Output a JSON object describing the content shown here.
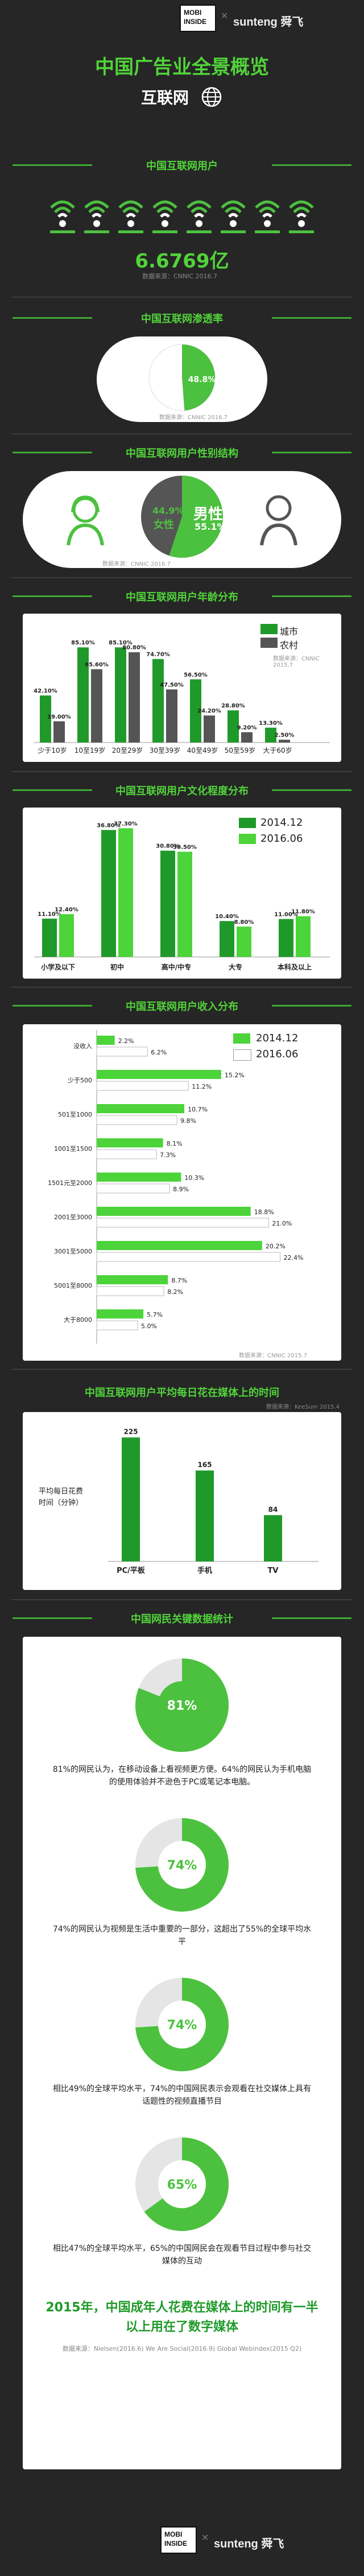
{
  "header": {
    "brand_left": "MOBI INSIDE",
    "brand_right": "sunteng 舜飞",
    "title": "中国广告业全景概览",
    "subtitle": "互联网"
  },
  "colors": {
    "background": "#262626",
    "accent": "#4cc13f",
    "dark_green": "#1f7a1f",
    "light_green": "#7de06a",
    "gray": "#9a9a9a"
  },
  "users": {
    "title": "中国互联网用户",
    "value": "6.6769亿",
    "source": "数据来源：CNNIC 2016.7",
    "icon": "wifi-icon"
  },
  "penetration": {
    "title": "中国互联网渗透率",
    "value": "48.8%",
    "percent": 48.8,
    "source": "数据来源：CNNIC 2016.7"
  },
  "gender": {
    "title": "中国互联网用户性别结构",
    "female_pct": "44.9%",
    "female_label": "女性",
    "male_label": "男性",
    "male_pct": "55.1%",
    "female_value": 44.9,
    "male_value": 55.1,
    "source": "数据来源：CNNIC 2016.7"
  },
  "age": {
    "title": "中国互联网用户年龄分布",
    "legend_city": "城市",
    "legend_rural": "农村",
    "source": "数据来源：CNNIC 2015.7"
  },
  "education": {
    "title": "中国互联网用户文化程度分布",
    "legend_a": "2014.12",
    "legend_b": "2016.06"
  },
  "income": {
    "title": "中国互联网用户收入分布",
    "legend_a": "2014.12",
    "legend_b": "2016.06",
    "source": "数据来源：CNNIC 2015.7"
  },
  "media_time": {
    "title": "中国互联网用户平均每日花在媒体上的时间",
    "source": "数据来源：KeeSum 2015.4",
    "ylabel": "平均每日花费时间（分钟）"
  },
  "stats": {
    "title": "中国网民关键数据统计",
    "items": [
      {
        "value": "81%",
        "percent": 81,
        "text": "81%的网民认为，在移动设备上看视频更方便。64%的网民认为手机电脑的使用体验并不逊色于PC或笔记本电脑。"
      },
      {
        "value": "74%",
        "percent": 74,
        "text": "74%的网民认为视频是生活中重要的一部分，这超出了55%的全球平均水平"
      },
      {
        "value": "74%",
        "percent": 74,
        "text": "相比49%的全球平均水平，74%的中国网民表示会观看在社交媒体上具有话题性的视频直播节目"
      },
      {
        "value": "65%",
        "percent": 65,
        "text": "相比47%的全球平均水平，65%的中国网民会在观看节目过程中参与社交媒体的互动"
      }
    ],
    "conclusion": "2015年，中国成年人花费在媒体上的时间有一半以上用在了数字媒体",
    "source": "数据来源：Nielsen(2016.6)   We Are Social(2016.9)   Global Webindex(2015 Q2)"
  },
  "footer": {
    "brand_left": "MOBI INSIDE",
    "brand_right": "sunteng 舜飞"
  },
  "chart_data": [
    {
      "type": "bar",
      "title": "中国互联网用户年龄分布",
      "categories": [
        "少于10岁",
        "10至19岁",
        "20至29岁",
        "30至39岁",
        "40至49岁",
        "50至59岁",
        "大于60岁"
      ],
      "series": [
        {
          "name": "城市",
          "values": [
            42.1,
            85.1,
            85.1,
            74.7,
            56.5,
            28.8,
            13.3
          ]
        },
        {
          "name": "农村",
          "values": [
            19.0,
            65.6,
            80.8,
            47.5,
            24.2,
            9.2,
            2.5
          ]
        }
      ],
      "ylim": [
        0,
        100
      ]
    },
    {
      "type": "bar",
      "title": "中国互联网用户文化程度分布",
      "categories": [
        "小学及以下",
        "初中",
        "高中/中专",
        "大专",
        "本科及以上"
      ],
      "series": [
        {
          "name": "2014.12",
          "values": [
            11.1,
            36.8,
            30.8,
            10.4,
            11.0
          ]
        },
        {
          "name": "2016.06",
          "values": [
            12.4,
            37.3,
            30.5,
            8.8,
            11.8
          ]
        }
      ],
      "ylim": [
        0,
        40
      ]
    },
    {
      "type": "bar",
      "orientation": "horizontal",
      "title": "中国互联网用户收入分布",
      "categories": [
        "没收入",
        "少于500",
        "501至1000",
        "1001至1500",
        "1501元至2000",
        "2001至3000",
        "3001至5000",
        "5001至8000",
        "大于8000"
      ],
      "series": [
        {
          "name": "2014.12",
          "values": [
            2.2,
            15.2,
            10.7,
            8.1,
            10.3,
            18.8,
            20.2,
            8.7,
            5.7
          ]
        },
        {
          "name": "2016.06",
          "values": [
            6.2,
            11.2,
            9.8,
            7.3,
            8.9,
            21.0,
            22.4,
            8.2,
            5.0
          ]
        }
      ],
      "xlim": [
        0,
        25
      ]
    },
    {
      "type": "bar",
      "title": "中国互联网用户平均每日花在媒体上的时间",
      "categories": [
        "PC/平板",
        "手机",
        "TV"
      ],
      "values": [
        225,
        165,
        84
      ],
      "ylabel": "平均每日花费时间（分钟）",
      "ylim": [
        0,
        240
      ]
    }
  ]
}
